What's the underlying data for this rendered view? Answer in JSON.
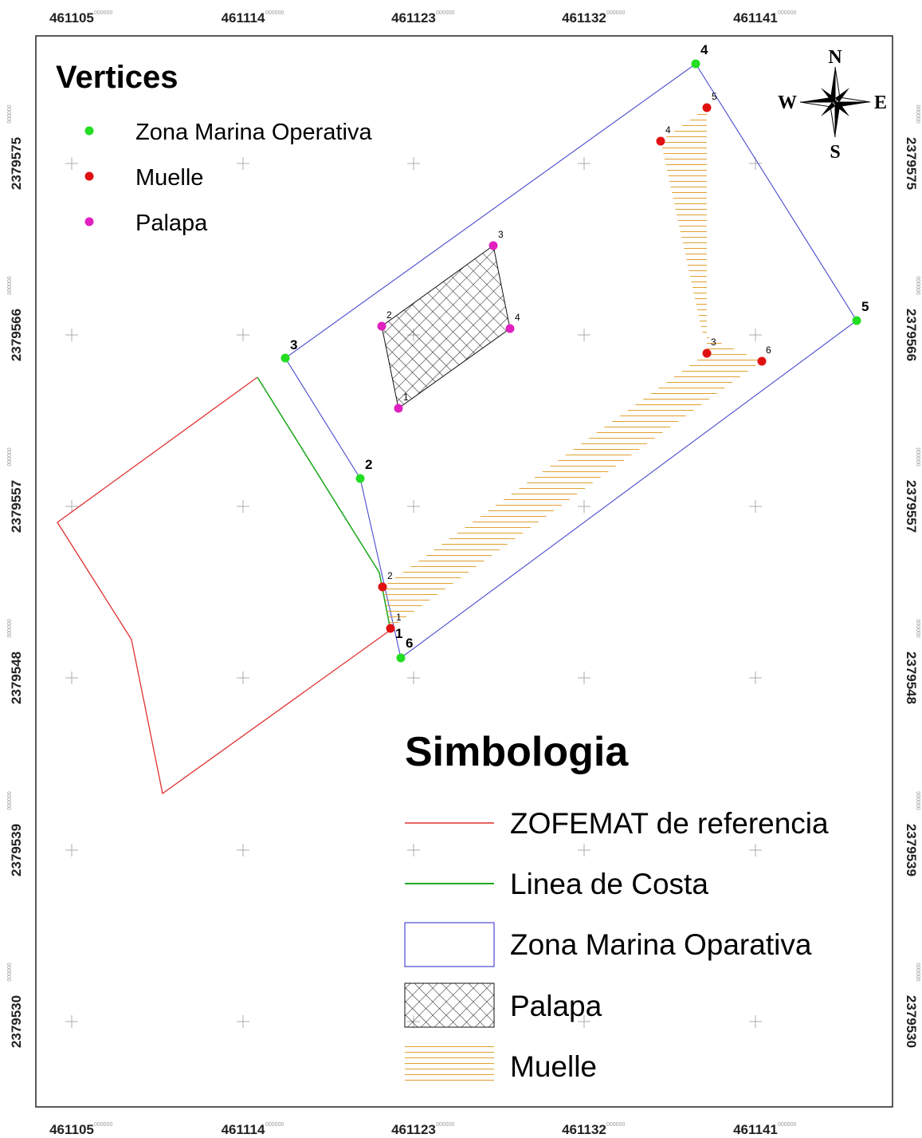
{
  "frame": {
    "x_ticks": [
      {
        "value": "461105",
        "sup": "000000"
      },
      {
        "value": "461114",
        "sup": "000000"
      },
      {
        "value": "461123",
        "sup": "000000"
      },
      {
        "value": "461132",
        "sup": "000000"
      },
      {
        "value": "461141",
        "sup": "000000"
      }
    ],
    "y_ticks": [
      {
        "value": "2379575",
        "sup": "000000"
      },
      {
        "value": "2379566",
        "sup": "000000"
      },
      {
        "value": "2379557",
        "sup": "000000"
      },
      {
        "value": "2379548",
        "sup": "000000"
      },
      {
        "value": "2379539",
        "sup": "000000"
      },
      {
        "value": "2379530",
        "sup": "000000"
      }
    ]
  },
  "vertices_legend": {
    "title": "Vertices",
    "items": [
      {
        "label": "Zona Marina Operativa",
        "color": "#22dd22"
      },
      {
        "label": "Muelle",
        "color": "#e01010"
      },
      {
        "label": "Palapa",
        "color": "#e020c0"
      }
    ]
  },
  "compass": {
    "north": "N",
    "south": "S",
    "east": "E",
    "west": "W"
  },
  "vertex_labels": {
    "zona": [
      "1",
      "2",
      "3",
      "4",
      "5",
      "6"
    ],
    "muelle": [
      "1",
      "2",
      "3",
      "4",
      "5",
      "6"
    ],
    "palapa": [
      "1",
      "2",
      "3",
      "4"
    ]
  },
  "simbologia": {
    "title": "Simbologia",
    "items": [
      {
        "label": "ZOFEMAT de referencia",
        "symbol": "red-line"
      },
      {
        "label": "Linea de Costa",
        "symbol": "green-line"
      },
      {
        "label": "Zona Marina Oparativa",
        "symbol": "blue-box"
      },
      {
        "label": "Palapa",
        "symbol": "crosshatch"
      },
      {
        "label": "Muelle",
        "symbol": "orange-hatch"
      }
    ]
  },
  "colors": {
    "zofemat": "#e03030",
    "costa": "#22aa22",
    "zona": "#4a4ad0",
    "muelle": "#e0a030",
    "vertex_zona": "#22dd22",
    "vertex_muelle": "#e01010",
    "vertex_palapa": "#e020c0"
  }
}
